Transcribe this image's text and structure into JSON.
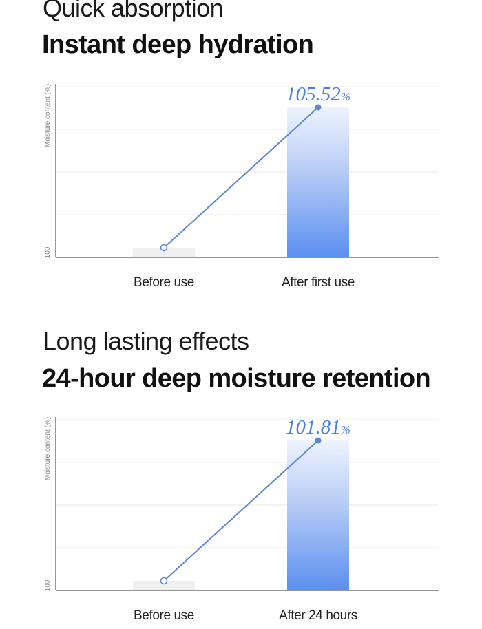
{
  "sections": [
    {
      "subtitle": "Quick absorption",
      "title": "Instant deep hydration",
      "chart_data": {
        "type": "bar",
        "categories": [
          "Before use",
          "After first use"
        ],
        "values": [
          100,
          105.52
        ],
        "ylabel": "Moisture content (%)",
        "yticks": [
          "100"
        ],
        "value_label": "105.52",
        "value_unit": "%",
        "bar_colors": [
          "#f0f0f0",
          "#5a8ff0"
        ],
        "line_color": "#5b86d6",
        "grid": true
      }
    },
    {
      "subtitle": "Long lasting effects",
      "title": "24-hour deep moisture retention",
      "chart_data": {
        "type": "bar",
        "categories": [
          "Before use",
          "After 24 hours"
        ],
        "values": [
          100,
          101.81
        ],
        "ylabel": "Moisture content (%)",
        "yticks": [
          "100"
        ],
        "value_label": "101.81",
        "value_unit": "%",
        "bar_colors": [
          "#f0f0f0",
          "#5a8ff0"
        ],
        "line_color": "#5b86d6",
        "grid": true
      }
    }
  ]
}
